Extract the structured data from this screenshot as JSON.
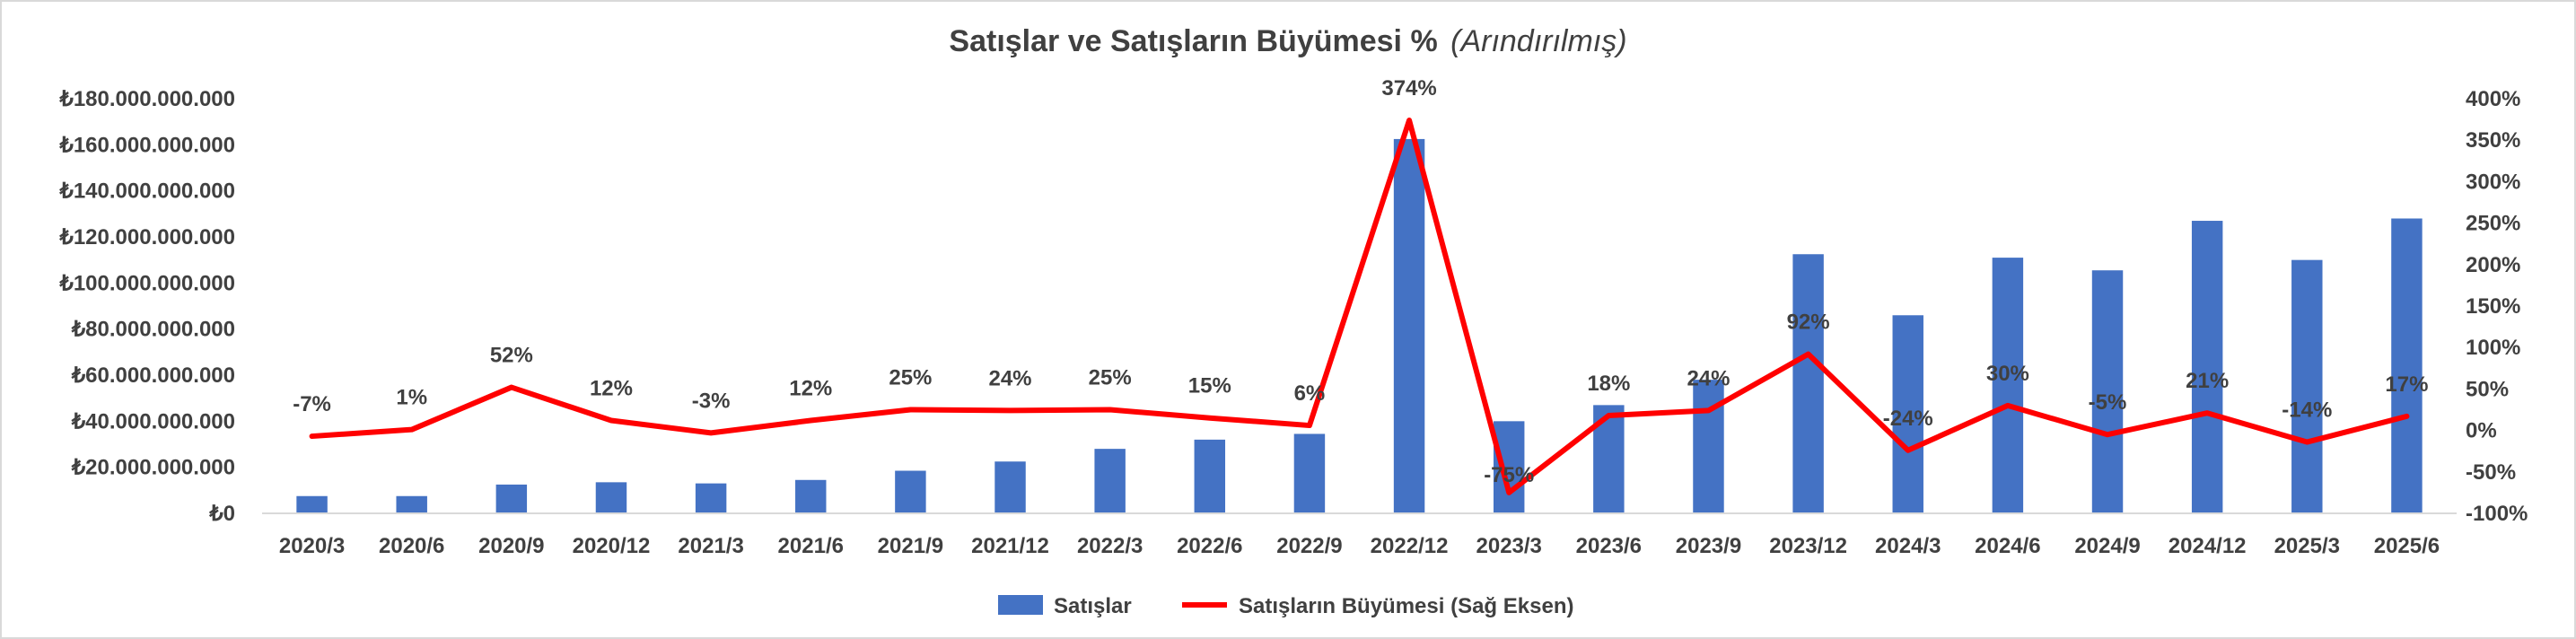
{
  "chart_data": {
    "type": "bar",
    "title": "Satışlar ve Satışların Büyümesi %",
    "subtitle": "(Arındırılmış)",
    "categories": [
      "2020/3",
      "2020/6",
      "2020/9",
      "2020/12",
      "2021/3",
      "2021/6",
      "2021/9",
      "2021/12",
      "2022/3",
      "2022/6",
      "2022/9",
      "2022/12",
      "2023/3",
      "2023/6",
      "2023/9",
      "2023/12",
      "2024/3",
      "2024/6",
      "2024/9",
      "2024/12",
      "2025/3",
      "2025/6"
    ],
    "series": [
      {
        "name": "Satışlar",
        "type": "bar",
        "axis": "left",
        "color": "#4472c4",
        "values": [
          7500000000,
          7500000000,
          12500000000,
          13500000000,
          13000000000,
          14500000000,
          18500000000,
          22500000000,
          28000000000,
          32000000000,
          34500000000,
          162500000000,
          40000000000,
          47000000000,
          58000000000,
          112500000000,
          86000000000,
          111000000000,
          105500000000,
          127000000000,
          110000000000,
          128000000000
        ]
      },
      {
        "name": "Satışların Büyümesi (Sağ Eksen)",
        "type": "line",
        "axis": "right",
        "color": "#ff0000",
        "values": [
          -7,
          1,
          52,
          12,
          -3,
          12,
          25,
          24,
          25,
          15,
          6,
          374,
          -75,
          18,
          24,
          92,
          -24,
          30,
          -5,
          21,
          -14,
          17
        ],
        "labels": [
          "-7%",
          "1%",
          "52%",
          "12%",
          "-3%",
          "12%",
          "25%",
          "24%",
          "25%",
          "15%",
          "6%",
          "374%",
          "-75%",
          "18%",
          "24%",
          "92%",
          "-24%",
          "30%",
          "-5%",
          "21%",
          "-14%",
          "17%"
        ]
      }
    ],
    "y_left": {
      "ylim": [
        0,
        180000000000
      ],
      "ticks": [
        "₺0",
        "₺20.000.000.000",
        "₺40.000.000.000",
        "₺60.000.000.000",
        "₺80.000.000.000",
        "₺100.000.000.000",
        "₺120.000.000.000",
        "₺140.000.000.000",
        "₺160.000.000.000",
        "₺180.000.000.000"
      ]
    },
    "y_right": {
      "ylim": [
        -100,
        400
      ],
      "ticks": [
        "-100%",
        "-50%",
        "0%",
        "50%",
        "100%",
        "150%",
        "200%",
        "250%",
        "300%",
        "350%",
        "400%"
      ]
    },
    "grid": false,
    "legend": "bottom"
  }
}
